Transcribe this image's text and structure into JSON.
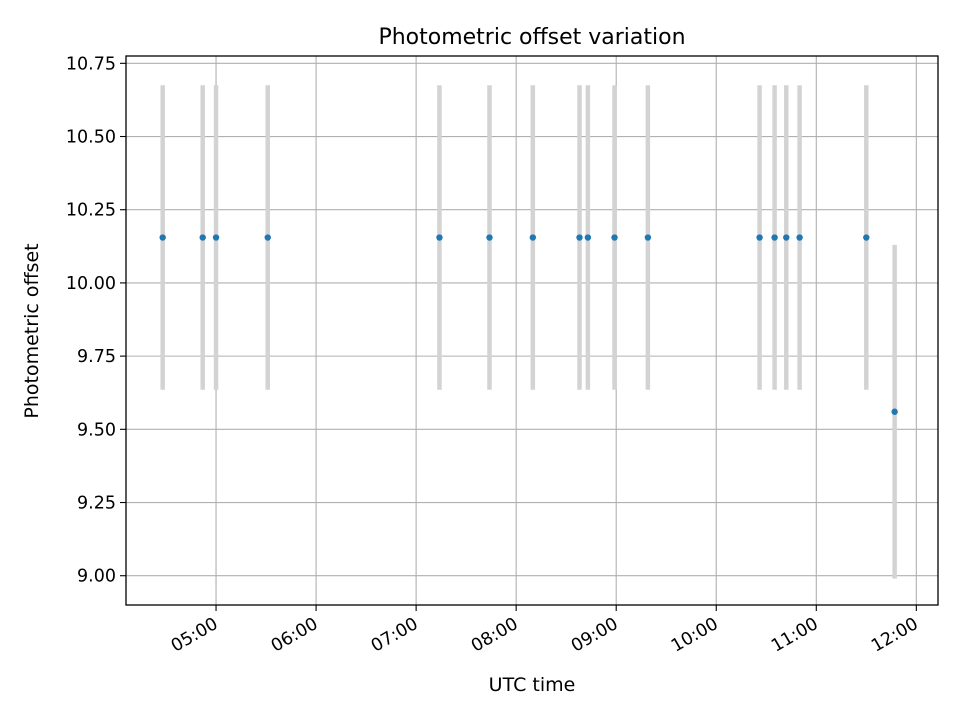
{
  "chart_data": {
    "type": "scatter",
    "title": "Photometric offset variation",
    "xlabel": "UTC time",
    "ylabel": "Photometric offset",
    "xlim": [
      "04:06",
      "12:13"
    ],
    "ylim": [
      8.9,
      10.775
    ],
    "x_ticks": [
      "05:00",
      "06:00",
      "07:00",
      "08:00",
      "09:00",
      "10:00",
      "11:00",
      "12:00"
    ],
    "y_ticks": [
      "9.00",
      "9.25",
      "9.50",
      "9.75",
      "10.00",
      "10.25",
      "10.50",
      "10.75"
    ],
    "grid": true,
    "series": [
      {
        "marker_color": "#1f77b4",
        "errorbar_color": "#d3d3d3",
        "points": [
          {
            "time": "04:28",
            "offset": 10.155,
            "error": 0.52
          },
          {
            "time": "04:52",
            "offset": 10.155,
            "error": 0.52
          },
          {
            "time": "05:00",
            "offset": 10.155,
            "error": 0.52
          },
          {
            "time": "05:31",
            "offset": 10.155,
            "error": 0.52
          },
          {
            "time": "07:14",
            "offset": 10.155,
            "error": 0.52
          },
          {
            "time": "07:44",
            "offset": 10.155,
            "error": 0.52
          },
          {
            "time": "08:10",
            "offset": 10.155,
            "error": 0.52
          },
          {
            "time": "08:38",
            "offset": 10.155,
            "error": 0.52
          },
          {
            "time": "08:43",
            "offset": 10.155,
            "error": 0.52
          },
          {
            "time": "08:59",
            "offset": 10.155,
            "error": 0.52
          },
          {
            "time": "09:19",
            "offset": 10.155,
            "error": 0.52
          },
          {
            "time": "10:26",
            "offset": 10.155,
            "error": 0.52
          },
          {
            "time": "10:35",
            "offset": 10.155,
            "error": 0.52
          },
          {
            "time": "10:42",
            "offset": 10.155,
            "error": 0.52
          },
          {
            "time": "10:50",
            "offset": 10.155,
            "error": 0.52
          },
          {
            "time": "11:30",
            "offset": 10.155,
            "error": 0.52
          },
          {
            "time": "11:47",
            "offset": 9.56,
            "error": 0.57
          }
        ]
      }
    ]
  }
}
